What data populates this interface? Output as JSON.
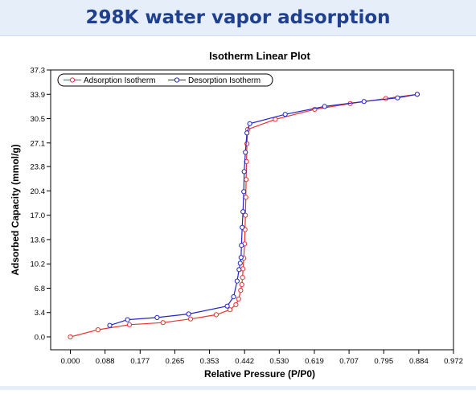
{
  "page": {
    "title": "298K  water vapor adsorption"
  },
  "chart_data": {
    "type": "line",
    "title": "Isotherm Linear Plot",
    "xlabel": "Relative Pressure (P/P0)",
    "ylabel": "Adsorbed Capacity (mmol/g)",
    "xlim": [
      -0.05,
      0.972
    ],
    "ylim": [
      -1.8,
      37.3
    ],
    "xticks": [
      "0.000",
      "0.088",
      "0.177",
      "0.265",
      "0.353",
      "0.442",
      "0.530",
      "0.619",
      "0.707",
      "0.795",
      "0.884",
      "0.972"
    ],
    "yticks": [
      "0.0",
      "3.4",
      "6.8",
      "10.2",
      "13.6",
      "17.0",
      "20.4",
      "23.8",
      "27.1",
      "30.5",
      "33.9",
      "37.3"
    ],
    "legend_position": "top-left",
    "grid": false,
    "series": [
      {
        "name": "Adsorption Isotherm",
        "color": "#e8322d",
        "marker": "circle",
        "points": [
          [
            0.0,
            0.0
          ],
          [
            0.07,
            1.0
          ],
          [
            0.15,
            1.7
          ],
          [
            0.235,
            2.0
          ],
          [
            0.305,
            2.5
          ],
          [
            0.37,
            3.1
          ],
          [
            0.405,
            3.8
          ],
          [
            0.42,
            4.5
          ],
          [
            0.427,
            5.3
          ],
          [
            0.432,
            6.5
          ],
          [
            0.435,
            7.3
          ],
          [
            0.437,
            8.3
          ],
          [
            0.438,
            9.5
          ],
          [
            0.44,
            11.0
          ],
          [
            0.442,
            13.0
          ],
          [
            0.443,
            15.0
          ],
          [
            0.444,
            17.0
          ],
          [
            0.445,
            19.5
          ],
          [
            0.446,
            22.0
          ],
          [
            0.447,
            24.5
          ],
          [
            0.448,
            27.0
          ],
          [
            0.45,
            29.0
          ],
          [
            0.52,
            30.4
          ],
          [
            0.62,
            31.8
          ],
          [
            0.71,
            32.6
          ],
          [
            0.8,
            33.3
          ],
          [
            0.88,
            33.9
          ]
        ]
      },
      {
        "name": "Desorption Isotherm",
        "color": "#2424c8",
        "marker": "circle",
        "points": [
          [
            0.88,
            33.9
          ],
          [
            0.83,
            33.4
          ],
          [
            0.745,
            32.9
          ],
          [
            0.645,
            32.2
          ],
          [
            0.545,
            31.1
          ],
          [
            0.455,
            29.8
          ],
          [
            0.448,
            28.5
          ],
          [
            0.444,
            25.8
          ],
          [
            0.441,
            23.1
          ],
          [
            0.44,
            20.3
          ],
          [
            0.438,
            17.5
          ],
          [
            0.436,
            15.3
          ],
          [
            0.434,
            12.8
          ],
          [
            0.433,
            11.1
          ],
          [
            0.431,
            10.3
          ],
          [
            0.428,
            9.4
          ],
          [
            0.423,
            7.8
          ],
          [
            0.414,
            5.6
          ],
          [
            0.398,
            4.3
          ],
          [
            0.3,
            3.2
          ],
          [
            0.22,
            2.7
          ],
          [
            0.145,
            2.4
          ],
          [
            0.1,
            1.6
          ]
        ]
      }
    ]
  }
}
